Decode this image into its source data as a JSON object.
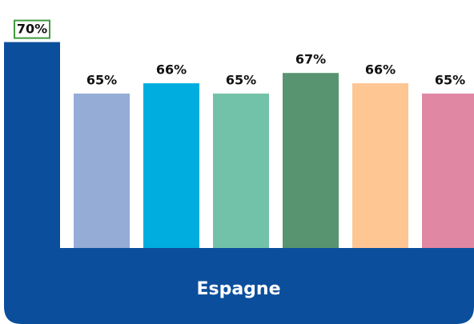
{
  "chart_data": {
    "type": "bar",
    "category": "Espagne",
    "values": [
      70,
      65,
      66,
      65,
      67,
      66,
      65
    ],
    "value_labels": [
      "70%",
      "65%",
      "66%",
      "65%",
      "67%",
      "66%",
      "65%"
    ],
    "colors": [
      "#0b4f9c",
      "#94acd6",
      "#00addf",
      "#72c2a9",
      "#589470",
      "#fdc693",
      "#e088a3"
    ],
    "highlight_color": "#3f9b3f",
    "ylim": [
      50,
      70
    ]
  }
}
